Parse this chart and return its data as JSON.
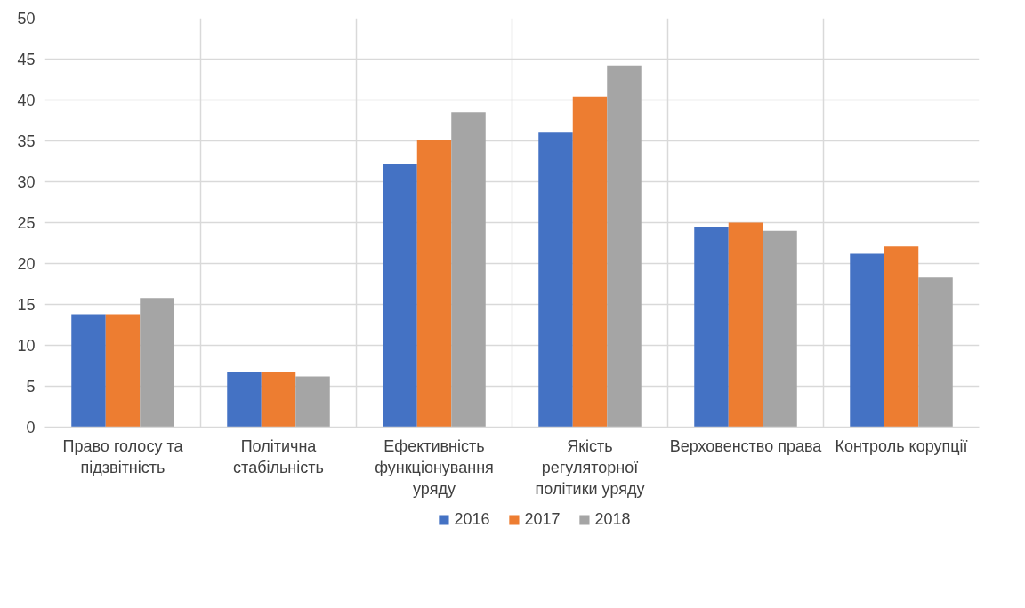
{
  "chart_data": {
    "type": "bar",
    "categories": [
      "Право голосу та підзвітність",
      "Політична стабільність",
      "Ефективність функціонування уряду",
      "Якість регуляторної політики уряду",
      "Верховенство права",
      "Контроль корупції"
    ],
    "series": [
      {
        "name": "2016",
        "color": "#4472c4",
        "values": [
          13.8,
          6.7,
          32.2,
          36.0,
          24.5,
          21.2
        ]
      },
      {
        "name": "2017",
        "color": "#ed7d31",
        "values": [
          13.8,
          6.7,
          35.1,
          40.4,
          25.0,
          22.1
        ]
      },
      {
        "name": "2018",
        "color": "#a5a5a5",
        "values": [
          15.8,
          6.2,
          38.5,
          44.2,
          24.0,
          18.3
        ]
      }
    ],
    "ylim": [
      0,
      50
    ],
    "yticks": [
      0,
      5,
      10,
      15,
      20,
      25,
      30,
      35,
      40,
      45,
      50
    ],
    "grid": true,
    "legend": "bottom"
  }
}
